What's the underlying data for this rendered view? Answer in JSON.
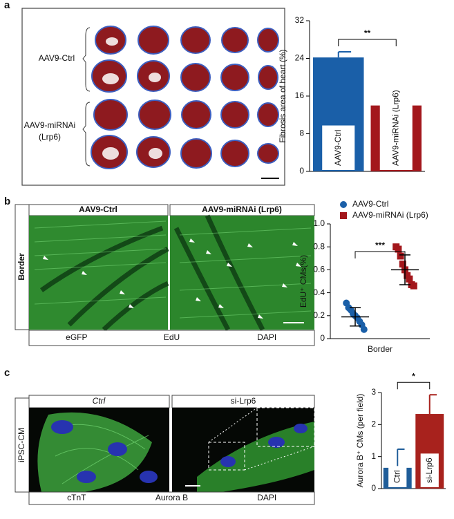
{
  "panel_labels": [
    "a",
    "b",
    "c"
  ],
  "images": {
    "a": {
      "groups": [
        [
          "AAV9-Ctrl"
        ],
        [
          "AAV9-miRNAi",
          "(Lrp6)"
        ]
      ]
    },
    "b": {
      "columns": [
        "AAV9-Ctrl",
        "AAV9-miRNAi (Lrp6)"
      ],
      "row": "Border",
      "stains": [
        {
          "name": "eGFP",
          "color": "#36c936"
        },
        {
          "name": "EdU",
          "color": "#e0392a"
        },
        {
          "name": "DAPI",
          "color": "#2b56d6"
        }
      ]
    },
    "c": {
      "columns": [
        "Ctrl",
        "si-Lrp6"
      ],
      "row": "iPSC-CM",
      "stains": [
        {
          "name": "cTnT",
          "color": "#36c936"
        },
        {
          "name": "Aurora B",
          "color": "#e0392a"
        },
        {
          "name": "DAPI",
          "color": "#2b56d6"
        }
      ]
    }
  },
  "chart_data": [
    {
      "type": "bar",
      "ylabel": "Fibrosis area of heart (%)",
      "categories": [
        "AAV9-Ctrl",
        "AAV9-miRNAi (Lrp6)"
      ],
      "values": [
        24.2,
        14
      ],
      "errors": [
        1.2,
        1
      ],
      "colors": [
        "#1a5fa8",
        "#a3171c"
      ],
      "ylim": [
        0,
        32
      ],
      "yticks": [
        0,
        8,
        16,
        24,
        32
      ],
      "significance": "**"
    },
    {
      "type": "scatter",
      "ylabel": "EdU⁺ CMs(%)",
      "xlabel": "Border",
      "series": [
        {
          "name": "AAV9-Ctrl",
          "color": "#1a5fa8",
          "marker": "circle",
          "values": [
            0.31,
            0.27,
            0.25,
            0.22,
            0.2,
            0.18,
            0.15,
            0.12,
            0.08
          ],
          "mean": 0.19,
          "sd": 0.08
        },
        {
          "name": "AAV9-miRNAi (Lrp6)",
          "color": "#a3171c",
          "marker": "square",
          "values": [
            0.8,
            0.78,
            0.72,
            0.65,
            0.6,
            0.55,
            0.52,
            0.47,
            0.46
          ],
          "mean": 0.6,
          "sd": 0.13
        }
      ],
      "ylim": [
        0,
        1
      ],
      "yticks": [
        0,
        0.2,
        0.4,
        0.6,
        0.8,
        {
          "value": 1,
          "label": "1.0"
        }
      ],
      "significance": "***"
    },
    {
      "type": "bar",
      "ylabel": "Aurora B⁺ CMs  (per field)",
      "categories": [
        "Ctrl",
        "si-Lrp6"
      ],
      "values": [
        0.65,
        2.33
      ],
      "errors": [
        0.58,
        0.6
      ],
      "colors": [
        "#1f5d99",
        "#a8221d"
      ],
      "ylim": [
        0,
        3
      ],
      "yticks": [
        0,
        1,
        2,
        3
      ],
      "significance": "*"
    }
  ]
}
